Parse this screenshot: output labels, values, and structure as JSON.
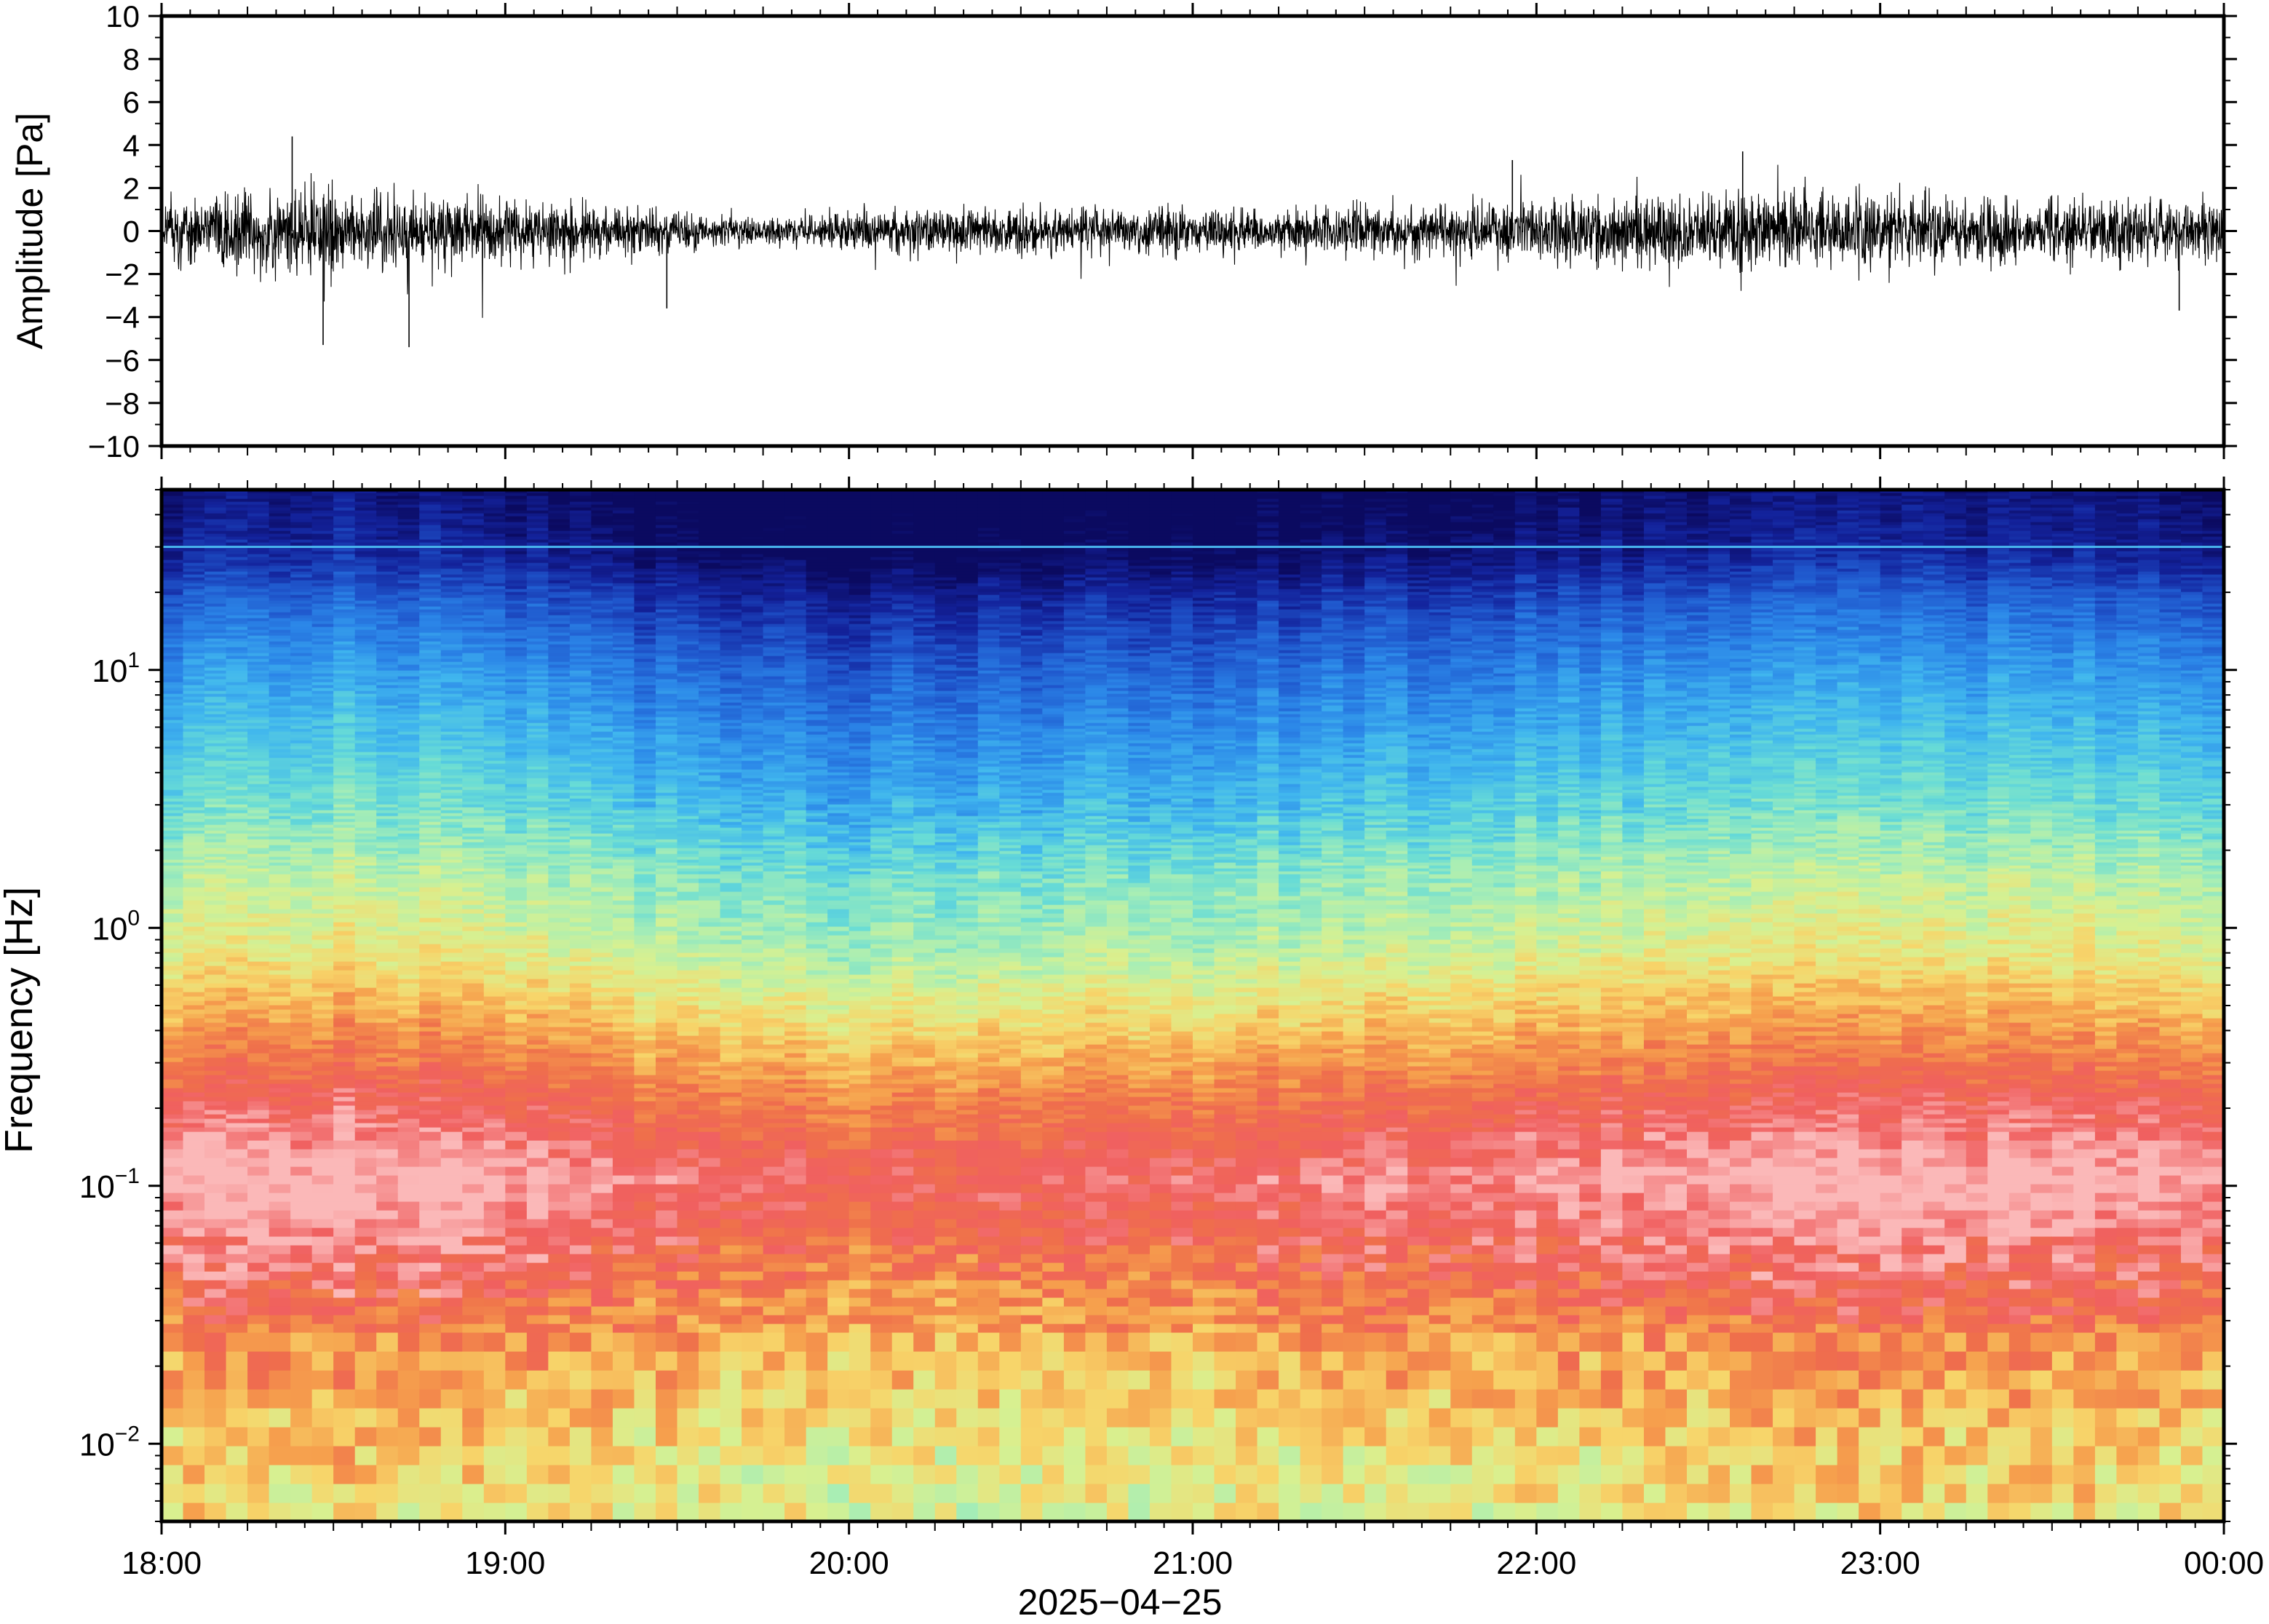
{
  "chart_data": [
    {
      "type": "line",
      "panel": "waveform",
      "ylabel": "Amplitude [Pa]",
      "ylim": [
        -10,
        10
      ],
      "yticks": [
        -10,
        -8,
        -6,
        -4,
        -2,
        0,
        2,
        4,
        6,
        8,
        10
      ],
      "ytick_labels": [
        "−10",
        "−8",
        "−6",
        "−4",
        "−2",
        "0",
        "2",
        "4",
        "6",
        "8",
        "10"
      ],
      "xlim": [
        "18:00",
        "00:00"
      ],
      "series": [
        {
          "color": "#000000",
          "x_hours": [
            18.0,
            18.25,
            18.5,
            18.75,
            19.0,
            19.25,
            19.5,
            19.75,
            20.0,
            20.25,
            20.5,
            20.75,
            21.0,
            21.25,
            21.5,
            21.75,
            22.0,
            22.25,
            22.5,
            22.75,
            23.0,
            23.25,
            23.5,
            23.75,
            24.0
          ],
          "envelope_pa": [
            1.3,
            1.7,
            1.8,
            1.6,
            1.4,
            1.1,
            0.8,
            0.5,
            0.9,
            0.9,
            0.9,
            1.0,
            0.9,
            0.9,
            1.0,
            1.1,
            1.2,
            1.4,
            1.6,
            1.5,
            1.4,
            1.4,
            1.3,
            1.3,
            1.2
          ],
          "peak_pa": [
            {
              "x_hour": 18.38,
              "y": 4.4
            },
            {
              "x_hour": 18.47,
              "y": -5.3
            },
            {
              "x_hour": 18.72,
              "y": -5.4
            },
            {
              "x_hour": 19.47,
              "y": -3.6
            },
            {
              "x_hour": 21.93,
              "y": 3.3
            },
            {
              "x_hour": 22.6,
              "y": 3.7
            },
            {
              "x_hour": 23.87,
              "y": -3.7
            }
          ]
        }
      ]
    },
    {
      "type": "heatmap",
      "panel": "spectrogram",
      "ylabel": "Frequency [Hz]",
      "yscale": "log",
      "ylim": [
        0.005,
        50
      ],
      "yticks": [
        0.01,
        0.1,
        1,
        10
      ],
      "ytick_labels": [
        {
          "base": "10",
          "exp": "−2"
        },
        {
          "base": "10",
          "exp": "−1"
        },
        {
          "base": "10",
          "exp": "0"
        },
        {
          "base": "10",
          "exp": "1"
        }
      ],
      "xlim": [
        "18:00",
        "00:00"
      ],
      "xtick_labels": [
        "18:00",
        "19:00",
        "20:00",
        "21:00",
        "22:00",
        "23:00",
        "00:00"
      ],
      "xlabel": "2025−04−25",
      "colormap": "jet-like",
      "colormap_stops": [
        "#fbb8b8",
        "#f06060",
        "#ef6f4b",
        "#f6a04d",
        "#f7d56a",
        "#d8f090",
        "#a9eeb4",
        "#68dcd6",
        "#40b6ee",
        "#2b86e8",
        "#1f56cc",
        "#13229b",
        "#0b0a60"
      ],
      "log_frequency_stops": [
        -2.3,
        -1.3,
        -1.0,
        -0.7,
        -0.45,
        -0.1,
        0.2,
        0.45,
        0.75,
        1.0,
        1.25,
        1.45,
        1.7
      ],
      "level_by_log_frequency": [
        {
          "log_f": -2.3,
          "level": 0.37
        },
        {
          "log_f": -2.0,
          "level": 0.33
        },
        {
          "log_f": -1.6,
          "level": 0.22
        },
        {
          "log_f": -1.3,
          "level": 0.1
        },
        {
          "log_f": -1.0,
          "level": 0.02
        },
        {
          "log_f": -0.7,
          "level": 0.12
        },
        {
          "log_f": -0.45,
          "level": 0.25
        },
        {
          "log_f": -0.1,
          "level": 0.42
        },
        {
          "log_f": 0.2,
          "level": 0.5
        },
        {
          "log_f": 0.45,
          "level": 0.6
        },
        {
          "log_f": 0.75,
          "level": 0.68
        },
        {
          "log_f": 1.0,
          "level": 0.75
        },
        {
          "log_f": 1.25,
          "level": 0.84
        },
        {
          "log_f": 1.45,
          "level": 0.95
        },
        {
          "log_f": 1.7,
          "level": 1.0
        }
      ],
      "level_shift_by_hour": [
        {
          "x_hour": 18.0,
          "shift": -0.02
        },
        {
          "x_hour": 18.5,
          "shift": -0.06
        },
        {
          "x_hour": 19.0,
          "shift": -0.02
        },
        {
          "x_hour": 19.5,
          "shift": 0.05
        },
        {
          "x_hour": 20.0,
          "shift": 0.08
        },
        {
          "x_hour": 20.5,
          "shift": 0.06
        },
        {
          "x_hour": 21.0,
          "shift": 0.05
        },
        {
          "x_hour": 21.5,
          "shift": 0.03
        },
        {
          "x_hour": 22.0,
          "shift": 0.0
        },
        {
          "x_hour": 22.5,
          "shift": -0.03
        },
        {
          "x_hour": 23.0,
          "shift": -0.04
        },
        {
          "x_hour": 23.5,
          "shift": -0.03
        },
        {
          "x_hour": 24.0,
          "shift": -0.02
        }
      ],
      "narrowband_line_hz": 30
    }
  ]
}
